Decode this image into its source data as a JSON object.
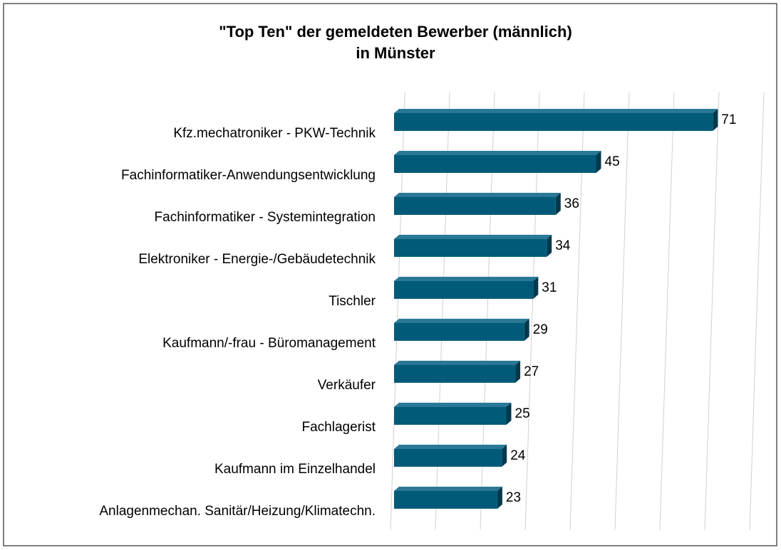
{
  "chart_data": {
    "type": "bar",
    "orientation": "horizontal",
    "title": [
      "\"Top Ten\" der gemeldeten Bewerber (männlich)",
      "in Münster"
    ],
    "categories": [
      "Kfz.mechatroniker - PKW-Technik",
      "Fachinformatiker-Anwendungsentwicklung",
      "Fachinformatiker - Systemintegration",
      "Elektroniker - Energie-/Gebäudetechnik",
      "Tischler",
      "Kaufmann/-frau - Büromanagement",
      "Verkäufer",
      "Fachlagerist",
      "Kaufmann im Einzelhandel",
      "Anlagenmechan. Sanitär/Heizung/Klimatechn."
    ],
    "values": [
      71,
      45,
      36,
      34,
      31,
      29,
      27,
      25,
      24,
      23
    ],
    "color": "#005a78",
    "xlim": [
      0,
      80
    ],
    "xticks": [
      0,
      10,
      20,
      30,
      40,
      50,
      60,
      70,
      80
    ],
    "grid": true
  }
}
